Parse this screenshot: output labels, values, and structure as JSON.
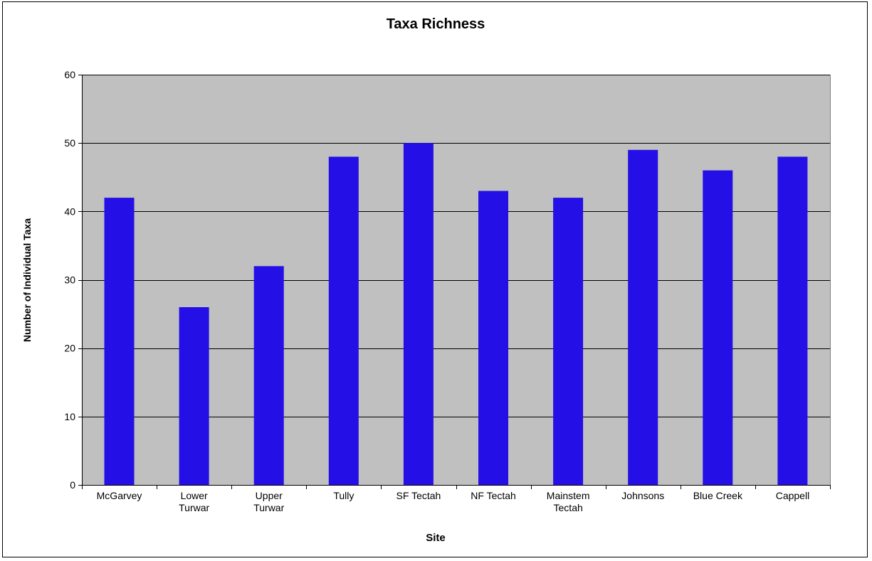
{
  "chart_data": {
    "type": "bar",
    "title": "Taxa Richness",
    "xlabel": "Site",
    "ylabel": "Number of Individual Taxa",
    "categories": [
      [
        "McGarvey"
      ],
      [
        "Lower",
        "Turwar"
      ],
      [
        "Upper",
        "Turwar"
      ],
      [
        "Tully"
      ],
      [
        "SF Tectah"
      ],
      [
        "NF Tectah"
      ],
      [
        "Mainstem",
        "Tectah"
      ],
      [
        "Johnsons"
      ],
      [
        "Blue Creek"
      ],
      [
        "Cappell"
      ]
    ],
    "values": [
      42,
      26,
      32,
      48,
      50,
      43,
      42,
      49,
      46,
      48
    ],
    "ylim": [
      0,
      60
    ],
    "yticks": [
      0,
      10,
      20,
      30,
      40,
      50,
      60
    ],
    "grid": true,
    "legend": "none",
    "colors": {
      "bar": "#2410E6",
      "plot_background": "#C0C0C0",
      "gridline": "#000000",
      "frame": "#000000"
    }
  }
}
